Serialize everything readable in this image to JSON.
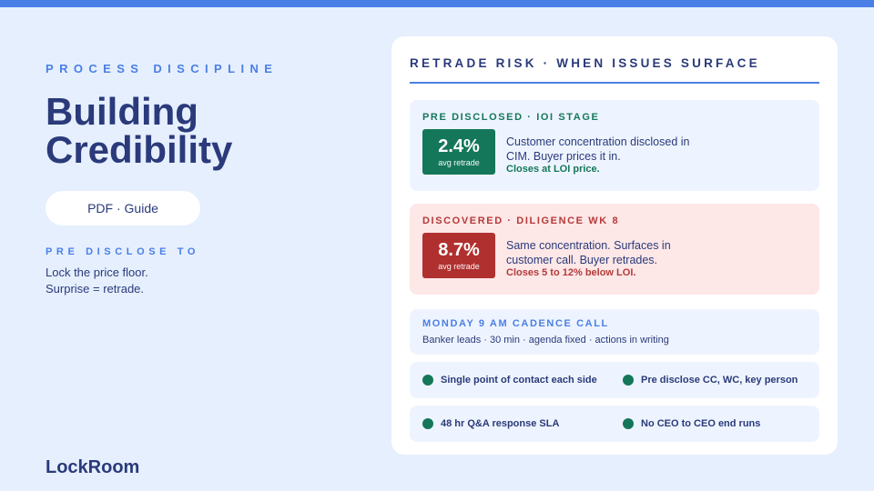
{
  "colors": {
    "accent": "#4a7fe6",
    "navy": "#2a3a7a",
    "green": "#14775a",
    "red": "#b0302f",
    "background": "#e6effe"
  },
  "left": {
    "eyebrow": "PROCESS DISCIPLINE",
    "title_line1": "Building",
    "title_line2": "Credibility",
    "pill": "PDF · Guide",
    "side_label": "PRE DISCLOSE TO",
    "side_line1": "Lock the price floor.",
    "side_line2": "Surprise = retrade.",
    "brand": "LockRoom"
  },
  "panel": {
    "title": "RETRADE RISK · WHEN ISSUES SURFACE",
    "pre_disclosed": {
      "heading": "PRE DISCLOSED · IOI STAGE",
      "stat_value": "2.4%",
      "stat_label": "avg retrade",
      "text": "Customer concentration disclosed in CIM. Buyer prices it in.",
      "note": "Closes at LOI price."
    },
    "discovered": {
      "heading": "DISCOVERED · DILIGENCE WK 8",
      "stat_value": "8.7%",
      "stat_label": "avg retrade",
      "text": "Same concentration. Surfaces in customer call. Buyer retrades.",
      "note": "Closes 5 to 12% below LOI."
    },
    "cadence": {
      "title": "MONDAY 9 AM CADENCE CALL",
      "subtitle": "Banker leads · 30 min · agenda fixed · actions in writing"
    },
    "checklist": [
      "Single point of contact each side",
      "Pre disclose CC, WC, key person",
      "48 hr Q&A response SLA",
      "No CEO to CEO end runs"
    ]
  }
}
